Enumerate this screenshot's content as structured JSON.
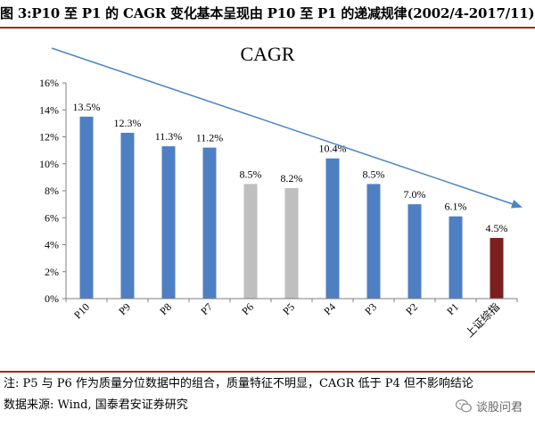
{
  "figure": {
    "title": "图 3:P10 至 P1 的 CAGR 变化基本呈现由 P10 至 P1 的递减规律(2002/4-2017/11)",
    "note": "注: P5 与 P6 作为质量分位数据中的组合，质量特征不明显，CAGR 低于 P4 但不影响结论",
    "source": "数据来源: Wind, 国泰君安证券研究",
    "watermark": "谈股问君"
  },
  "colors": {
    "rule": "#b32318",
    "blue_bar": "#4f7fc3",
    "gray_bar": "#bfbfbf",
    "index_bar": "#7b1f1f",
    "trend_arrow": "#4a86c7"
  },
  "chart_data": {
    "type": "bar",
    "title": "CAGR",
    "categories": [
      "P10",
      "P9",
      "P8",
      "P7",
      "P6",
      "P5",
      "P4",
      "P3",
      "P2",
      "P1",
      "上证综指"
    ],
    "values": [
      13.5,
      12.3,
      11.3,
      11.2,
      8.5,
      8.2,
      10.4,
      8.5,
      7.0,
      6.1,
      4.5
    ],
    "value_labels": [
      "13.5%",
      "12.3%",
      "11.3%",
      "11.2%",
      "8.5%",
      "8.2%",
      "10.4%",
      "8.5%",
      "7.0%",
      "6.1%",
      "4.5%"
    ],
    "bar_colors": [
      "blue",
      "blue",
      "blue",
      "blue",
      "gray",
      "gray",
      "blue",
      "blue",
      "blue",
      "blue",
      "index"
    ],
    "ylim": [
      0,
      16
    ],
    "yticks": [
      "0%",
      "2%",
      "4%",
      "6%",
      "8%",
      "10%",
      "12%",
      "14%",
      "16%"
    ],
    "grid": false,
    "legend": "none",
    "annotation": "downward trend arrow from upper-left to lower-right"
  }
}
